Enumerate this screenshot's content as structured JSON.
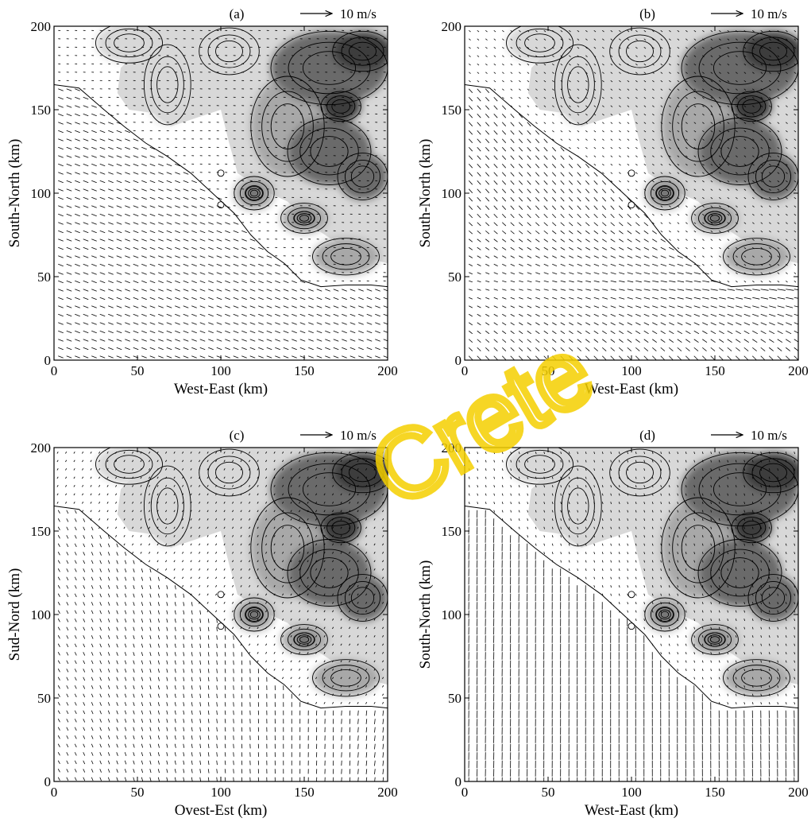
{
  "chart_data": [
    {
      "type": "vector-field",
      "panel": "(a)",
      "xlabel": "West-East (km)",
      "ylabel": "South-North (km)",
      "xlim": [
        0,
        200
      ],
      "ylim": [
        0,
        200
      ],
      "xticks": [
        "0",
        "50",
        "100",
        "150",
        "200"
      ],
      "yticks": [
        "0",
        "50",
        "100",
        "150",
        "200"
      ],
      "reference_vector": "10 m/s",
      "flow_pattern": "west-northwesterly onshore flow over sea, weak over land"
    },
    {
      "type": "vector-field",
      "panel": "(b)",
      "xlabel": "West-East (km)",
      "ylabel": "South-North (km)",
      "xlim": [
        0,
        200
      ],
      "ylim": [
        0,
        200
      ],
      "xticks": [
        "0",
        "50",
        "100",
        "150",
        "200"
      ],
      "yticks": [
        "0",
        "50",
        "100",
        "150",
        "200"
      ],
      "reference_vector": "10 m/s",
      "flow_pattern": "northwesterly converging to strong easterly jet along southern coast"
    },
    {
      "type": "vector-field",
      "panel": "(c)",
      "xlabel": "Ovest-Est (km)",
      "ylabel": "Sud-Nord (km)",
      "xlim": [
        0,
        200
      ],
      "ylim": [
        0,
        200
      ],
      "xticks": [
        "0",
        "50",
        "100",
        "150",
        "200"
      ],
      "yticks": [
        "0",
        "50",
        "100",
        "150",
        "200"
      ],
      "reference_vector": "10 m/s",
      "flow_pattern": "southwesterly over sea turning northerly toward coast"
    },
    {
      "type": "vector-field",
      "panel": "(d)",
      "xlabel": "West-East (km)",
      "ylabel": "South-North (km)",
      "xlim": [
        0,
        200
      ],
      "ylim": [
        0,
        200
      ],
      "xticks": [
        "0",
        "50",
        "100",
        "150",
        "200"
      ],
      "yticks": [
        "0",
        "50",
        "100",
        "150",
        "200"
      ],
      "reference_vector": "10 m/s",
      "flow_pattern": "strong northerly flow over sea"
    }
  ],
  "watermark": "Crete",
  "colors": {
    "terrain_light": "#d8d8d8",
    "terrain_mid": "#a8a8a8",
    "terrain_dark": "#6a6a6a",
    "terrain_darkest": "#3c3c3c",
    "watermark": "#f5d000"
  }
}
